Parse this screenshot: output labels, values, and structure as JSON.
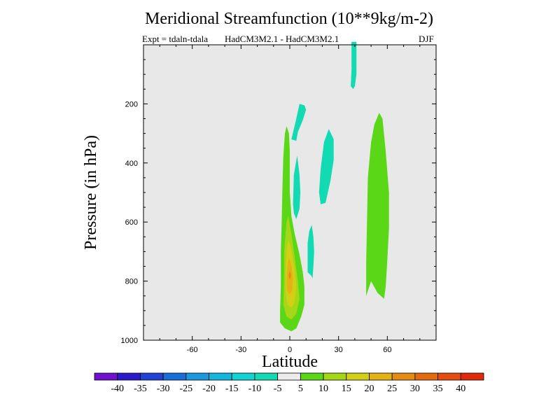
{
  "chart_data": {
    "type": "contour",
    "title": "Meridional Streamfunction (10**9kg/m-2)",
    "subtitle_left": "Expt = tdaln-tdala",
    "subtitle_center": "HadCM3M2.1 - HadCM3M2.1",
    "subtitle_right": "DJF",
    "xlabel": "Latitude",
    "ylabel": "Pressure (in hPa)",
    "xlim": [
      -90,
      90
    ],
    "ylim": [
      0,
      1000
    ],
    "xticks": [
      -60,
      -30,
      0,
      30,
      60
    ],
    "xtick_labels": [
      "-60",
      "-30",
      "0",
      "30",
      "60"
    ],
    "yticks": [
      200,
      400,
      600,
      800,
      1000
    ],
    "ytick_labels": [
      "200",
      "400",
      "600",
      "800",
      "1000"
    ],
    "background_color": "#e8e8e8",
    "colorbar": {
      "colors": [
        "#7010d0",
        "#2c1ac8",
        "#2242d6",
        "#1a6ed8",
        "#1c98de",
        "#12b6dc",
        "#12d2d2",
        "#12dab2",
        "#ececec",
        "#5ad818",
        "#a4d816",
        "#d2d016",
        "#e4b214",
        "#e48c12",
        "#e46a10",
        "#e44c10",
        "#e02a08"
      ],
      "labels": [
        "-40",
        "-35",
        "-30",
        "-25",
        "-20",
        "-15",
        "-10",
        "-5",
        "5",
        "10",
        "15",
        "20",
        "25",
        "30",
        "35",
        "40"
      ]
    },
    "regions": [
      {
        "level": "-10 to -5",
        "color": "#12dab2",
        "polygon": [
          [
            38,
            -10
          ],
          [
            41,
            -10
          ],
          [
            41,
            100
          ],
          [
            40,
            140
          ],
          [
            39,
            150
          ],
          [
            37.5,
            140
          ],
          [
            38,
            80
          ]
        ]
      },
      {
        "level": "-10 to -5",
        "color": "#12dab2",
        "polygon": [
          [
            1,
            320
          ],
          [
            4,
            250
          ],
          [
            6,
            200
          ],
          [
            9,
            205
          ],
          [
            10,
            220
          ],
          [
            8,
            255
          ],
          [
            5,
            295
          ],
          [
            4,
            325
          ]
        ]
      },
      {
        "level": "-10 to -5",
        "color": "#12dab2",
        "polygon": [
          [
            18,
            500
          ],
          [
            19,
            420
          ],
          [
            21,
            330
          ],
          [
            24,
            285
          ],
          [
            27,
            320
          ],
          [
            27,
            390
          ],
          [
            25,
            460
          ],
          [
            22,
            535
          ],
          [
            19,
            540
          ]
        ]
      },
      {
        "level": "-10 to -5",
        "color": "#12dab2",
        "polygon": [
          [
            2,
            540
          ],
          [
            2.5,
            440
          ],
          [
            4.5,
            375
          ],
          [
            6,
            440
          ],
          [
            6.5,
            500
          ],
          [
            6,
            555
          ],
          [
            4,
            590
          ],
          [
            2.5,
            570
          ]
        ]
      },
      {
        "level": "-10 to -5",
        "color": "#12dab2",
        "polygon": [
          [
            11,
            770
          ],
          [
            11,
            670
          ],
          [
            12,
            630
          ],
          [
            13.5,
            610
          ],
          [
            14.5,
            650
          ],
          [
            15,
            700
          ],
          [
            14.5,
            750
          ],
          [
            14,
            790
          ],
          [
            13,
            780
          ]
        ]
      },
      {
        "level": "5 to 10",
        "color": "#5ad818",
        "polygon": [
          [
            -6,
            900
          ],
          [
            -5.5,
            820
          ],
          [
            -5.5,
            700
          ],
          [
            -5,
            600
          ],
          [
            -4.5,
            480
          ],
          [
            -4,
            380
          ],
          [
            -3,
            300
          ],
          [
            -2,
            275
          ],
          [
            -0.5,
            300
          ],
          [
            0,
            360
          ],
          [
            0,
            500
          ],
          [
            1,
            580
          ],
          [
            3,
            640
          ],
          [
            6,
            710
          ],
          [
            8,
            770
          ],
          [
            9,
            820
          ],
          [
            9,
            880
          ],
          [
            7,
            920
          ],
          [
            4,
            960
          ],
          [
            1,
            970
          ],
          [
            -3,
            960
          ],
          [
            -6,
            940
          ]
        ]
      },
      {
        "level": "5 to 10",
        "color": "#5ad818",
        "polygon": [
          [
            47,
            850
          ],
          [
            47,
            740
          ],
          [
            47.5,
            600
          ],
          [
            48,
            450
          ],
          [
            50,
            330
          ],
          [
            52,
            270
          ],
          [
            55,
            230
          ],
          [
            57,
            250
          ],
          [
            59,
            360
          ],
          [
            61,
            500
          ],
          [
            61,
            620
          ],
          [
            60,
            730
          ],
          [
            59,
            820
          ],
          [
            58,
            860
          ],
          [
            54,
            840
          ],
          [
            50,
            800
          ]
        ]
      },
      {
        "level": "10 to 15",
        "color": "#a4d816",
        "polygon": [
          [
            -4,
            880
          ],
          [
            -3.5,
            780
          ],
          [
            -3.5,
            700
          ],
          [
            -2,
            600
          ],
          [
            -1,
            580
          ],
          [
            1,
            640
          ],
          [
            3,
            720
          ],
          [
            5,
            800
          ],
          [
            6,
            860
          ],
          [
            4,
            910
          ],
          [
            1,
            930
          ],
          [
            -2,
            920
          ]
        ]
      },
      {
        "level": "15 to 20",
        "color": "#d2d016",
        "polygon": [
          [
            -2.5,
            840
          ],
          [
            -2.5,
            760
          ],
          [
            -2,
            700
          ],
          [
            -1,
            660
          ],
          [
            1,
            690
          ],
          [
            3,
            760
          ],
          [
            4,
            820
          ],
          [
            3,
            870
          ],
          [
            1,
            890
          ],
          [
            -1.5,
            880
          ]
        ]
      },
      {
        "level": "20 to 25",
        "color": "#e4b214",
        "polygon": [
          [
            -2,
            810
          ],
          [
            -1.5,
            750
          ],
          [
            -0.5,
            720
          ],
          [
            1,
            745
          ],
          [
            2,
            790
          ],
          [
            1.5,
            830
          ],
          [
            0,
            845
          ],
          [
            -1.5,
            835
          ]
        ]
      },
      {
        "level": "25 to 30",
        "color": "#e48c12",
        "polygon": [
          [
            -0.8,
            780
          ],
          [
            0,
            765
          ],
          [
            0.8,
            780
          ],
          [
            0,
            795
          ]
        ]
      }
    ]
  }
}
